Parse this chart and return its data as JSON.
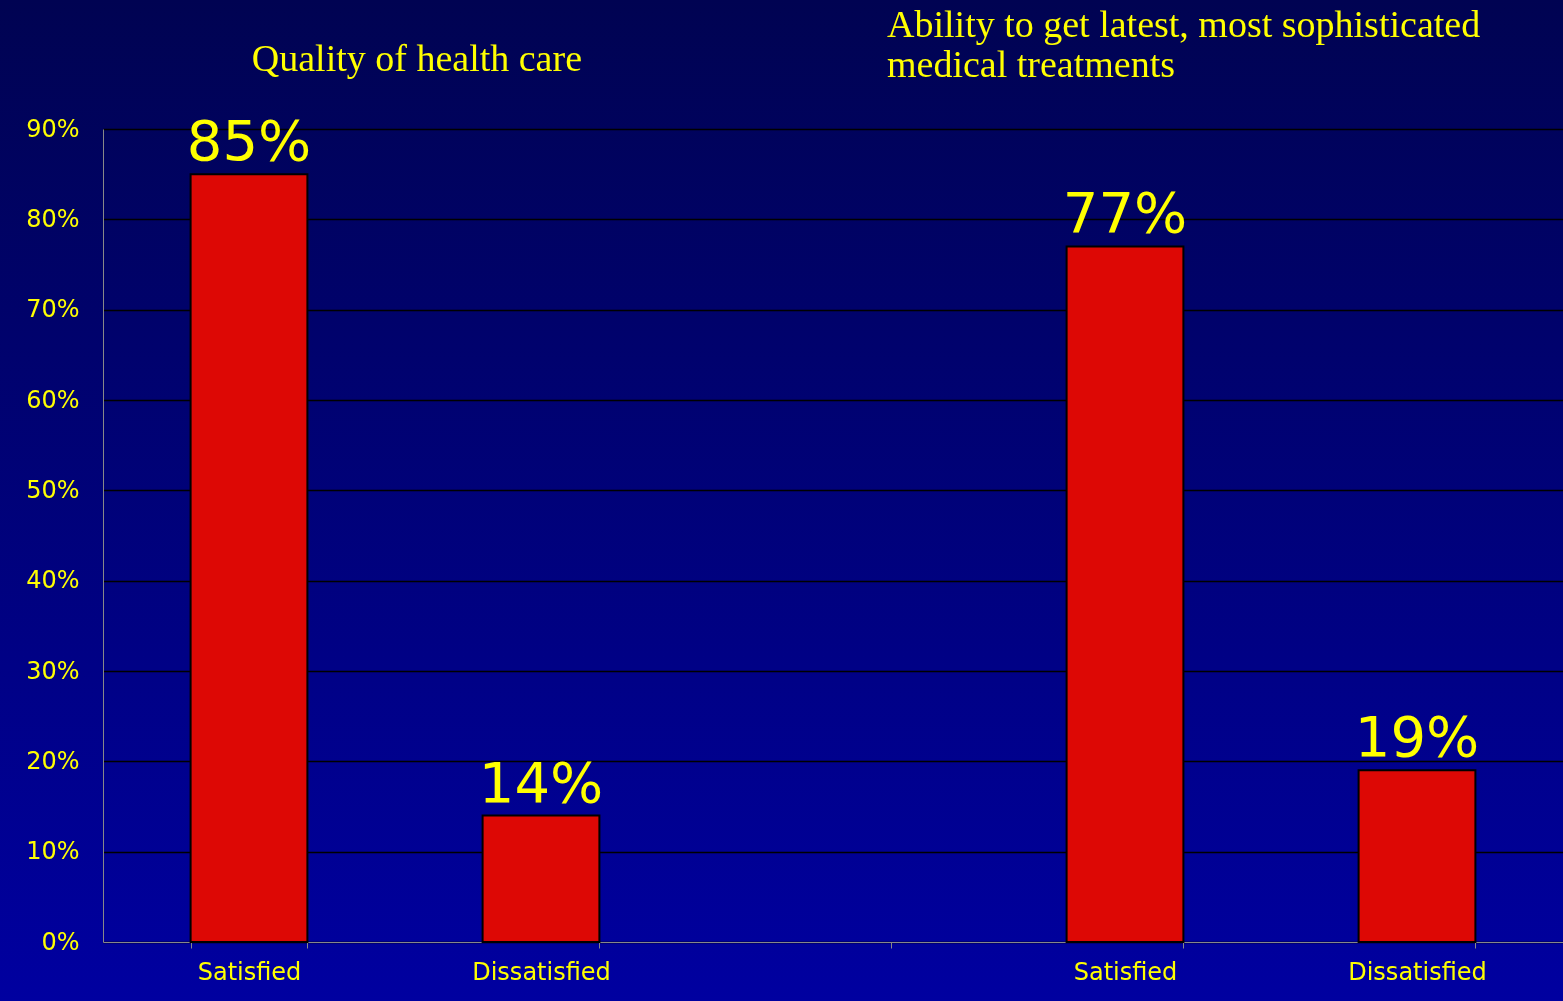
{
  "chart_data": {
    "type": "bar",
    "categories": [
      "Satisfied",
      "Dissatisfied",
      null,
      "Satisfied",
      "Dissatisfied"
    ],
    "values": [
      85,
      14,
      null,
      77,
      19
    ],
    "value_labels": [
      "85%",
      "14%",
      null,
      "77%",
      "19%"
    ],
    "color": "#dd0805",
    "ylim": [
      0,
      90
    ],
    "yticks": [
      {
        "value": 0,
        "label": "0%"
      },
      {
        "value": 10,
        "label": "10%"
      },
      {
        "value": 20,
        "label": "20%"
      },
      {
        "value": 30,
        "label": "30%"
      },
      {
        "value": 40,
        "label": "40%"
      },
      {
        "value": 50,
        "label": "50%"
      },
      {
        "value": 60,
        "label": "60%"
      },
      {
        "value": 70,
        "label": "70%"
      },
      {
        "value": 80,
        "label": "80%"
      },
      {
        "value": 90,
        "label": "90%"
      }
    ],
    "grid": "y",
    "annotations": [
      "Quality of health care",
      "Ability to get latest, most sophisticated medical treatments"
    ]
  }
}
